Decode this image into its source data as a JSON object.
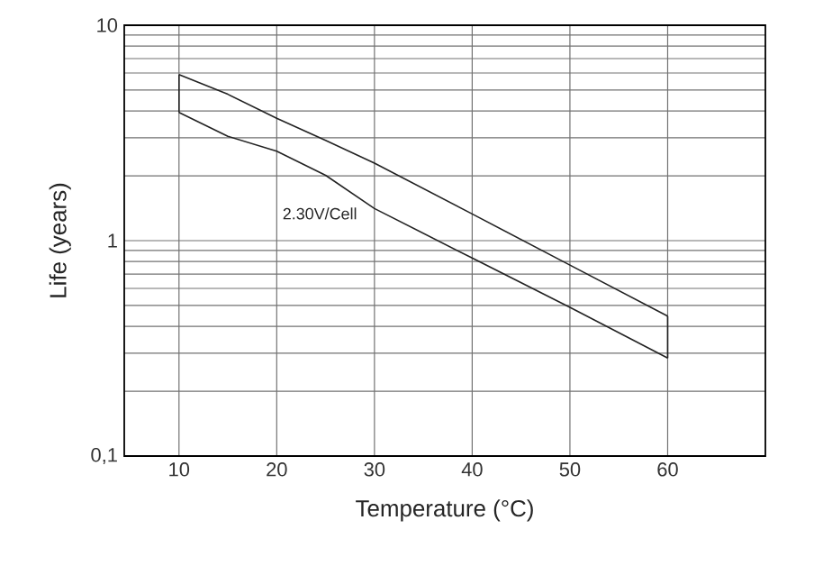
{
  "chart_data": {
    "type": "line",
    "xlabel": "Temperature (°C)",
    "ylabel": "Life (years)",
    "x": [
      10,
      15,
      20,
      25,
      30,
      40,
      50,
      60
    ],
    "series": [
      {
        "color": "#222222",
        "values": [
          5.9,
          4.78,
          3.7,
          2.92,
          2.29,
          1.33,
          0.77,
          0.446
        ]
      },
      {
        "color": "#222222",
        "values": [
          3.94,
          3.05,
          2.6,
          2.01,
          1.41,
          0.83,
          0.49,
          0.285
        ]
      }
    ],
    "xlim": [
      4.4,
      70
    ],
    "xticks": [
      10,
      20,
      30,
      40,
      50,
      60
    ],
    "ylim": [
      0.1,
      10
    ],
    "yticks": [
      {
        "value": 0.1,
        "label": "0,1"
      },
      1,
      10
    ],
    "log": "y",
    "grid": true,
    "marker": "none",
    "line_style": "solid",
    "annotations": [
      "2.30V/Cell"
    ]
  }
}
